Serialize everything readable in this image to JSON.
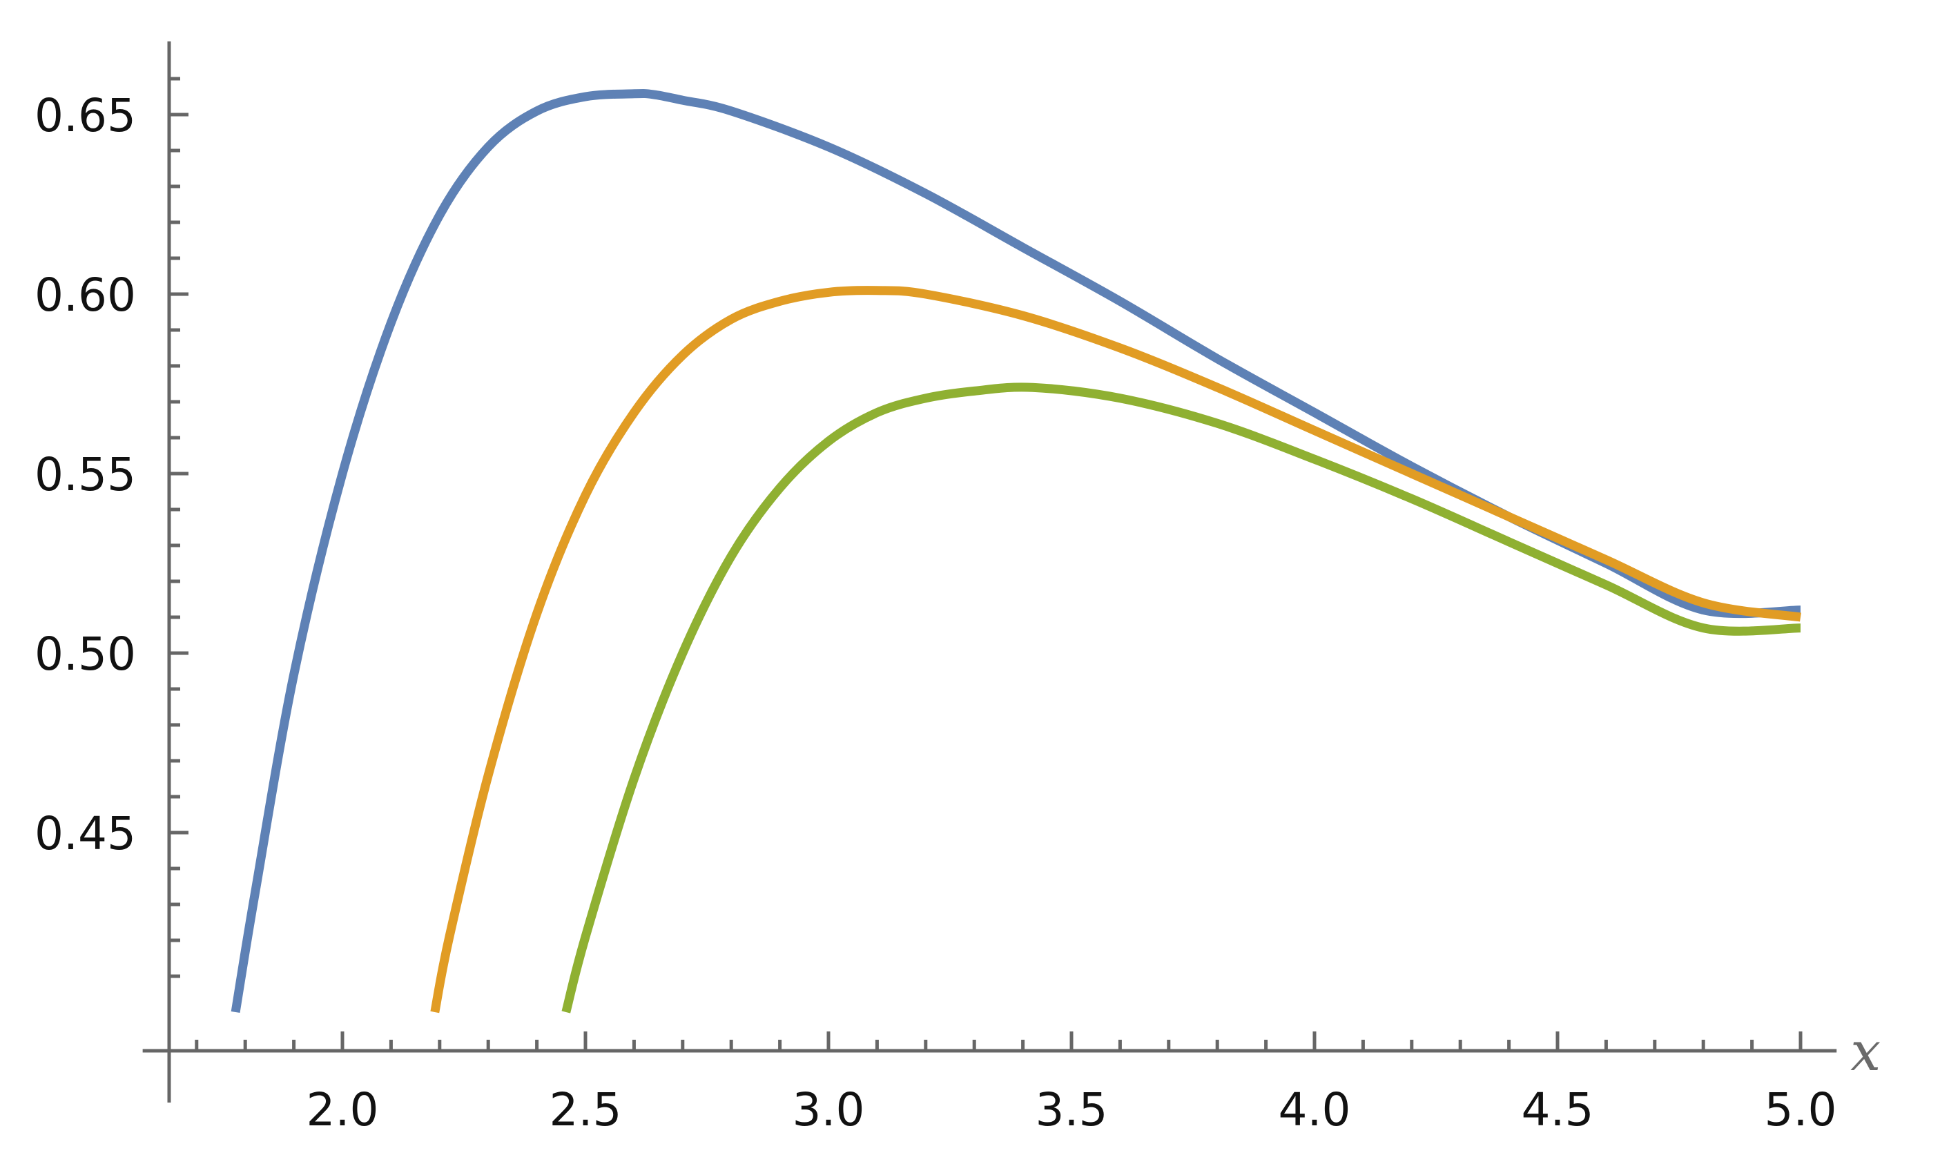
{
  "chart_data": {
    "type": "line",
    "title": "",
    "xlabel": "x",
    "ylabel": "",
    "xlim": [
      1.66,
      5.06
    ],
    "ylim": [
      0.4,
      0.668
    ],
    "x_ticks": [
      {
        "value": 2.0,
        "label": "2.0"
      },
      {
        "value": 2.5,
        "label": "2.5"
      },
      {
        "value": 3.0,
        "label": "3.0"
      },
      {
        "value": 3.5,
        "label": "3.5"
      },
      {
        "value": 4.0,
        "label": "4.0"
      },
      {
        "value": 4.5,
        "label": "4.5"
      },
      {
        "value": 5.0,
        "label": "5.0"
      }
    ],
    "y_ticks": [
      {
        "value": 0.45,
        "label": "0.45"
      },
      {
        "value": 0.5,
        "label": "0.50"
      },
      {
        "value": 0.55,
        "label": "0.55"
      },
      {
        "value": 0.6,
        "label": "0.60"
      },
      {
        "value": 0.65,
        "label": "0.65"
      }
    ],
    "x_minor_step": 0.1,
    "y_minor_step": 0.01,
    "grid": false,
    "series": [
      {
        "color": "#5e81b5",
        "x": [
          1.78,
          1.82,
          1.9,
          2.0,
          2.1,
          2.2,
          2.3,
          2.4,
          2.5,
          2.6,
          2.64,
          2.7,
          2.8,
          3.0,
          3.2,
          3.4,
          3.6,
          3.8,
          4.0,
          4.2,
          4.4,
          4.6,
          4.8,
          5.0
        ],
        "y": [
          0.4,
          0.433,
          0.494,
          0.55,
          0.592,
          0.622,
          0.641,
          0.651,
          0.655,
          0.6558,
          0.6556,
          0.654,
          0.651,
          0.641,
          0.628,
          0.613,
          0.598,
          0.582,
          0.567,
          0.552,
          0.538,
          0.525,
          0.512,
          0.512
        ]
      },
      {
        "color": "#e19c24",
        "x": [
          2.19,
          2.22,
          2.3,
          2.4,
          2.5,
          2.6,
          2.7,
          2.8,
          2.9,
          3.0,
          3.1,
          3.2,
          3.4,
          3.6,
          3.8,
          4.0,
          4.2,
          4.4,
          4.6,
          4.8,
          5.0
        ],
        "y": [
          0.4,
          0.421,
          0.466,
          0.511,
          0.544,
          0.567,
          0.583,
          0.593,
          0.598,
          0.6005,
          0.601,
          0.6,
          0.594,
          0.585,
          0.574,
          0.562,
          0.55,
          0.538,
          0.526,
          0.514,
          0.51
        ]
      },
      {
        "color": "#8fb032",
        "x": [
          2.46,
          2.5,
          2.6,
          2.7,
          2.8,
          2.9,
          3.0,
          3.1,
          3.2,
          3.3,
          3.42,
          3.6,
          3.8,
          4.0,
          4.2,
          4.4,
          4.6,
          4.8,
          5.0
        ],
        "y": [
          0.4,
          0.421,
          0.465,
          0.5,
          0.527,
          0.546,
          0.559,
          0.567,
          0.571,
          0.573,
          0.574,
          0.571,
          0.564,
          0.554,
          0.543,
          0.531,
          0.519,
          0.507,
          0.507
        ]
      }
    ]
  }
}
